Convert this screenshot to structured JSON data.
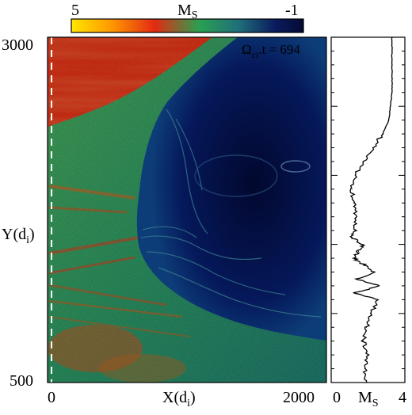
{
  "colorbar": {
    "label_main": "M",
    "label_sub": "S",
    "min_label": "5",
    "max_label": "-1",
    "stops": [
      "#ffe600",
      "#ff9a00",
      "#e32a12",
      "#2aa050",
      "#1f6f7a",
      "#0a1a5c",
      "#040a33"
    ]
  },
  "main_panel": {
    "annotation_main": "Ω",
    "annotation_sub": "ci",
    "annotation_rest": ".t = 694",
    "ylabel_main": "Y(d",
    "ylabel_sub": "i",
    "ylabel_close": ")",
    "xlabel_main": "X(d",
    "xlabel_sub": "i",
    "xlabel_close": ")",
    "x_ticks": [
      "0",
      "2000"
    ],
    "y_ticks": [
      "3000",
      "500"
    ],
    "dashed_line_x": 30,
    "colors": {
      "upstream": "#e03418",
      "sheath": "#2f9a5a",
      "magnetosphere": "#04134f",
      "dashed": "#ffffff",
      "annotation": "#ffffff"
    }
  },
  "profile_panel": {
    "x_ticks": [
      "0",
      "4"
    ],
    "xlabel_main": "M",
    "xlabel_sub": "S"
  },
  "chart_data": [
    {
      "type": "heatmap",
      "title": "",
      "xlabel": "X(d_i)",
      "ylabel": "Y(d_i)",
      "xlim": [
        0,
        2100
      ],
      "ylim": [
        500,
        3000
      ],
      "colorbar_label": "M_S",
      "colorbar_range": [
        5,
        -1
      ],
      "annotation": "Ω_ci.t = 694"
    },
    {
      "type": "line",
      "xlabel": "M_S",
      "ylabel": "Y(d_i)",
      "xlim": [
        0,
        4.6
      ],
      "ylim": [
        500,
        3000
      ],
      "series": [
        {
          "y": [
            500,
            600,
            700,
            800,
            900,
            1000,
            1100,
            1150,
            1200,
            1250,
            1300,
            1350,
            1400,
            1450,
            1500,
            1550,
            1600,
            1700,
            1800,
            1900,
            2000,
            2100,
            2200,
            2300,
            2400,
            2500,
            2600,
            2700,
            2800,
            2900,
            3000
          ],
          "values": [
            2.2,
            2.1,
            2.3,
            2.0,
            2.2,
            2.5,
            2.9,
            1.5,
            3.0,
            1.6,
            2.7,
            2.1,
            1.4,
            1.7,
            2.0,
            1.3,
            1.5,
            1.6,
            1.4,
            1.3,
            1.5,
            2.0,
            2.6,
            3.2,
            3.6,
            3.7,
            3.8,
            3.8,
            3.8,
            3.8,
            3.8
          ]
        }
      ]
    }
  ]
}
